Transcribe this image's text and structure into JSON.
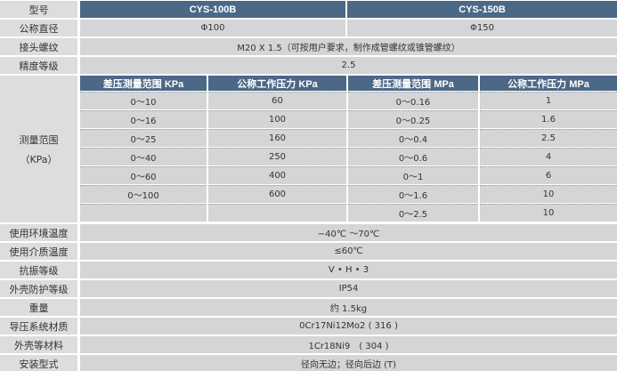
{
  "model": {
    "label": "型号",
    "cols": [
      "CYS-100B",
      "CYS-150B"
    ]
  },
  "diameter": {
    "label": "公称直径",
    "values": [
      "Φ100",
      "Φ150"
    ]
  },
  "thread": {
    "label": "接头螺纹",
    "value": "M20 X 1.5（可按用户要求，制作成管螺纹或锥管螺纹）"
  },
  "accuracy": {
    "label": "精度等级",
    "value": "2.5"
  },
  "range": {
    "label": "测量范围",
    "unit": "（KPa）",
    "headers": [
      "差压测量范围 KPa",
      "公称工作压力 KPa",
      "差压测量范围 MPa",
      "公称工作压力 MPa"
    ],
    "rows": [
      [
        "0～10",
        "60",
        "0～0.16",
        "1"
      ],
      [
        "0～16",
        "100",
        "0～0.25",
        "1.6"
      ],
      [
        "0～25",
        "160",
        "0～0.4",
        "2.5"
      ],
      [
        "0～40",
        "250",
        "0～0.6",
        "4"
      ],
      [
        "0～60",
        "400",
        "0～1",
        "6"
      ],
      [
        "0～100",
        "600",
        "0～1.6",
        "10"
      ],
      [
        "",
        "",
        "0～2.5",
        "10"
      ]
    ]
  },
  "specs": [
    {
      "label": "使用环境温度",
      "value": "−40℃ ～70℃"
    },
    {
      "label": "使用介质温度",
      "value": "≤60℃"
    },
    {
      "label": "抗振等级",
      "value": "V • H • 3"
    },
    {
      "label": "外壳防护等级",
      "value": "IP54"
    },
    {
      "label": "重量",
      "value": "约 1.5kg"
    },
    {
      "label": "导压系统材质",
      "value": "0Cr17Ni12Mo2 ( 316 )"
    },
    {
      "label": "外壳等材料",
      "value": "1Cr18Ni9　( 304 )"
    },
    {
      "label": "安装型式",
      "value": "径向无边；径向后边 (T)"
    }
  ]
}
